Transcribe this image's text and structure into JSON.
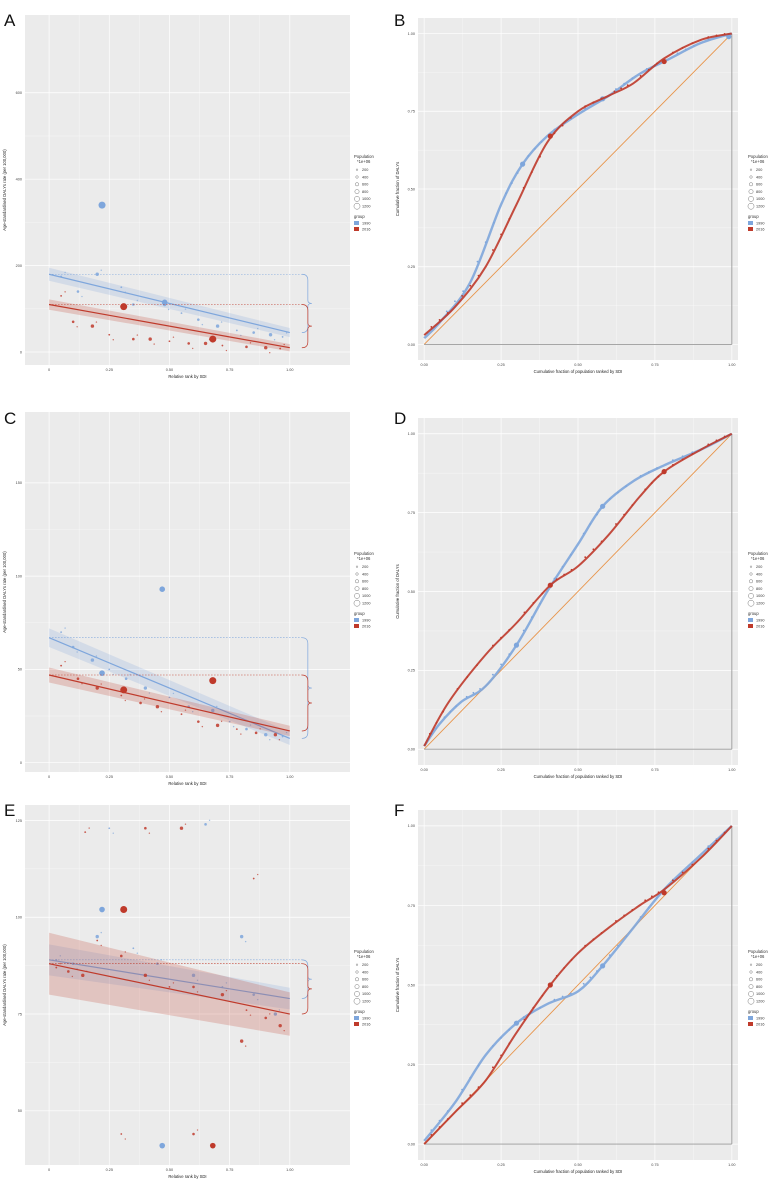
{
  "figure": {
    "legend": {
      "population_title": "Population",
      "population_subtitle": "*1e+06",
      "sizes": [
        "200",
        "400",
        "600",
        "800",
        "1000",
        "1200"
      ],
      "group_title": "group",
      "group_1990": "1990",
      "group_2016": "2016"
    },
    "colors": {
      "c1990": "#7ea6dc",
      "c2016": "#bf3a2b",
      "diag": "#e8944a",
      "panel_bg": "#ebebeb"
    }
  },
  "chart_data": [
    {
      "panel_label": "A",
      "type": "scatter",
      "title": "",
      "xlabel": "Relative rank by SDI",
      "ylabel": "Age-standardised DALYs rate (per 100,000)",
      "xticks": [
        "0",
        "0.25",
        "0.50",
        "0.75",
        "1.00"
      ],
      "yticks": [
        "0",
        "200",
        "400",
        "600"
      ],
      "ylim": [
        -30,
        780
      ],
      "series": [
        {
          "name": "1990",
          "fit": [
            180,
            45
          ],
          "band": 15,
          "points": [
            [
              0.05,
              175
            ],
            [
              0.12,
              140
            ],
            [
              0.2,
              180
            ],
            [
              0.3,
              150
            ],
            [
              0.35,
              110
            ],
            [
              0.48,
              110
            ],
            [
              0.55,
              90
            ],
            [
              0.62,
              75
            ],
            [
              0.7,
              60
            ],
            [
              0.78,
              50
            ],
            [
              0.85,
              45
            ],
            [
              0.92,
              40
            ],
            [
              0.97,
              35
            ]
          ],
          "big": [
            [
              0.22,
              340,
              5
            ],
            [
              0.48,
              115,
              4
            ]
          ]
        },
        {
          "name": "2016",
          "fit": [
            110,
            10
          ],
          "band": 12,
          "points": [
            [
              0.05,
              130
            ],
            [
              0.1,
              70
            ],
            [
              0.18,
              60
            ],
            [
              0.25,
              40
            ],
            [
              0.35,
              30
            ],
            [
              0.42,
              30
            ],
            [
              0.5,
              25
            ],
            [
              0.58,
              20
            ],
            [
              0.65,
              20
            ],
            [
              0.72,
              15
            ],
            [
              0.82,
              12
            ],
            [
              0.9,
              10
            ],
            [
              0.96,
              8
            ]
          ],
          "big": [
            [
              0.31,
              105,
              5
            ],
            [
              0.68,
              30,
              5
            ]
          ]
        }
      ]
    },
    {
      "panel_label": "B",
      "type": "line",
      "title": "",
      "xlabel": "Cumulative fraction of population ranked by SDI",
      "ylabel": "Cumulative fraction of DALYs",
      "xticks": [
        "0.00",
        "0.25",
        "0.50",
        "0.75",
        "1.00"
      ],
      "yticks": [
        "0.00",
        "0.25",
        "0.50",
        "0.75",
        "1.00"
      ],
      "ylim": [
        -0.05,
        1.05
      ],
      "series": [
        {
          "name": "1990",
          "curve": [
            [
              0,
              0.02
            ],
            [
              0.05,
              0.07
            ],
            [
              0.15,
              0.2
            ],
            [
              0.25,
              0.45
            ],
            [
              0.32,
              0.58
            ],
            [
              0.4,
              0.67
            ],
            [
              0.5,
              0.74
            ],
            [
              0.6,
              0.8
            ],
            [
              0.7,
              0.87
            ],
            [
              0.8,
              0.92
            ],
            [
              0.9,
              0.97
            ],
            [
              1,
              1
            ]
          ],
          "big": [
            [
              0.32,
              0.58
            ],
            [
              0.58,
              0.79
            ],
            [
              0.99,
              0.99
            ]
          ]
        },
        {
          "name": "2016",
          "curve": [
            [
              0,
              0.03
            ],
            [
              0.1,
              0.12
            ],
            [
              0.2,
              0.25
            ],
            [
              0.3,
              0.45
            ],
            [
              0.4,
              0.65
            ],
            [
              0.5,
              0.75
            ],
            [
              0.6,
              0.8
            ],
            [
              0.68,
              0.84
            ],
            [
              0.78,
              0.92
            ],
            [
              0.9,
              0.98
            ],
            [
              1,
              1
            ]
          ],
          "big": [
            [
              0.41,
              0.67
            ],
            [
              0.78,
              0.91
            ]
          ]
        }
      ]
    },
    {
      "panel_label": "C",
      "type": "scatter",
      "title": "",
      "xlabel": "Relative rank by SDI",
      "ylabel": "Age-standardised DALYs rate (per 100,000)",
      "xticks": [
        "0",
        "0.25",
        "0.50",
        "0.75",
        "1.00"
      ],
      "yticks": [
        "0",
        "50",
        "100",
        "150"
      ],
      "ylim": [
        -5,
        188
      ],
      "series": [
        {
          "name": "1990",
          "fit": [
            67,
            13
          ],
          "band": 5,
          "points": [
            [
              0.05,
              70
            ],
            [
              0.1,
              62
            ],
            [
              0.18,
              55
            ],
            [
              0.25,
              50
            ],
            [
              0.32,
              45
            ],
            [
              0.4,
              40
            ],
            [
              0.5,
              35
            ],
            [
              0.58,
              30
            ],
            [
              0.68,
              28
            ],
            [
              0.75,
              22
            ],
            [
              0.82,
              18
            ],
            [
              0.9,
              15
            ],
            [
              0.97,
              14
            ]
          ],
          "big": [
            [
              0.22,
              48,
              4
            ],
            [
              0.47,
              93,
              4
            ]
          ]
        },
        {
          "name": "2016",
          "fit": [
            47,
            17
          ],
          "band": 4,
          "points": [
            [
              0.05,
              52
            ],
            [
              0.12,
              45
            ],
            [
              0.2,
              40
            ],
            [
              0.3,
              36
            ],
            [
              0.38,
              32
            ],
            [
              0.45,
              30
            ],
            [
              0.55,
              26
            ],
            [
              0.62,
              22
            ],
            [
              0.7,
              20
            ],
            [
              0.78,
              18
            ],
            [
              0.86,
              16
            ],
            [
              0.94,
              15
            ]
          ],
          "big": [
            [
              0.31,
              39,
              5
            ],
            [
              0.68,
              44,
              5
            ]
          ]
        }
      ]
    },
    {
      "panel_label": "D",
      "type": "line",
      "title": "",
      "xlabel": "Cumulative fraction of population ranked by SDI",
      "ylabel": "Cumulative fraction of DALYs",
      "xticks": [
        "0.00",
        "0.25",
        "0.50",
        "0.75",
        "1.00"
      ],
      "yticks": [
        "0.00",
        "0.25",
        "0.50",
        "0.75",
        "1.00"
      ],
      "ylim": [
        -0.05,
        1.05
      ],
      "series": [
        {
          "name": "1990",
          "curve": [
            [
              0,
              0.01
            ],
            [
              0.05,
              0.08
            ],
            [
              0.12,
              0.15
            ],
            [
              0.2,
              0.2
            ],
            [
              0.3,
              0.33
            ],
            [
              0.4,
              0.5
            ],
            [
              0.5,
              0.65
            ],
            [
              0.58,
              0.77
            ],
            [
              0.68,
              0.85
            ],
            [
              0.78,
              0.9
            ],
            [
              0.9,
              0.95
            ],
            [
              1,
              1
            ]
          ],
          "big": [
            [
              0.3,
              0.33
            ],
            [
              0.58,
              0.77
            ]
          ]
        },
        {
          "name": "2016",
          "curve": [
            [
              0,
              0.01
            ],
            [
              0.08,
              0.15
            ],
            [
              0.2,
              0.3
            ],
            [
              0.3,
              0.4
            ],
            [
              0.41,
              0.52
            ],
            [
              0.5,
              0.58
            ],
            [
              0.6,
              0.68
            ],
            [
              0.7,
              0.8
            ],
            [
              0.78,
              0.88
            ],
            [
              0.9,
              0.95
            ],
            [
              1,
              1
            ]
          ],
          "big": [
            [
              0.41,
              0.52
            ],
            [
              0.78,
              0.88
            ]
          ]
        }
      ]
    },
    {
      "panel_label": "E",
      "type": "scatter",
      "title": "",
      "xlabel": "Relative rank by SDI",
      "ylabel": "Age-standardised DALYs rate (per 100,000)",
      "xticks": [
        "0",
        "0.25",
        "0.50",
        "0.75",
        "1.00"
      ],
      "yticks": [
        "50",
        "75",
        "100",
        "125"
      ],
      "ylim": [
        36,
        129
      ],
      "series": [
        {
          "name": "1990",
          "fit": [
            89,
            79
          ],
          "band": 4,
          "points": [
            [
              0.03,
              89
            ],
            [
              0.1,
              88
            ],
            [
              0.2,
              95
            ],
            [
              0.35,
              92
            ],
            [
              0.45,
              88
            ],
            [
              0.6,
              85
            ],
            [
              0.72,
              82
            ],
            [
              0.85,
              80
            ],
            [
              0.94,
              75
            ],
            [
              0.25,
              123
            ],
            [
              0.65,
              124
            ],
            [
              0.8,
              95
            ]
          ],
          "big": [
            [
              0.22,
              102,
              4
            ],
            [
              0.47,
              41,
              4
            ]
          ]
        },
        {
          "name": "2016",
          "fit": [
            88,
            75
          ],
          "band": 8,
          "points": [
            [
              0.03,
              87
            ],
            [
              0.08,
              86
            ],
            [
              0.14,
              85
            ],
            [
              0.2,
              94
            ],
            [
              0.3,
              90
            ],
            [
              0.4,
              85
            ],
            [
              0.5,
              82
            ],
            [
              0.6,
              82
            ],
            [
              0.72,
              80
            ],
            [
              0.82,
              76
            ],
            [
              0.9,
              74
            ],
            [
              0.96,
              72
            ],
            [
              0.15,
              122
            ],
            [
              0.4,
              123
            ],
            [
              0.55,
              123
            ],
            [
              0.3,
              44
            ],
            [
              0.6,
              44
            ],
            [
              0.8,
              68
            ],
            [
              0.85,
              110
            ]
          ],
          "big": [
            [
              0.31,
              102,
              5
            ],
            [
              0.68,
              41,
              4
            ]
          ]
        }
      ]
    },
    {
      "panel_label": "F",
      "type": "line",
      "title": "",
      "xlabel": "Cumulative fraction of population ranked by SDI",
      "ylabel": "Cumulative fraction of DALYs",
      "xticks": [
        "0.00",
        "0.25",
        "0.50",
        "0.75",
        "1.00"
      ],
      "yticks": [
        "0.00",
        "0.25",
        "0.50",
        "0.75",
        "1.00"
      ],
      "ylim": [
        -0.05,
        1.05
      ],
      "series": [
        {
          "name": "1990",
          "curve": [
            [
              0,
              0.01
            ],
            [
              0.1,
              0.13
            ],
            [
              0.2,
              0.28
            ],
            [
              0.3,
              0.38
            ],
            [
              0.4,
              0.44
            ],
            [
              0.5,
              0.48
            ],
            [
              0.58,
              0.56
            ],
            [
              0.68,
              0.68
            ],
            [
              0.78,
              0.8
            ],
            [
              0.9,
              0.91
            ],
            [
              1,
              1
            ]
          ],
          "big": [
            [
              0.3,
              0.38
            ],
            [
              0.58,
              0.56
            ]
          ]
        },
        {
          "name": "2016",
          "curve": [
            [
              0,
              0.0
            ],
            [
              0.1,
              0.1
            ],
            [
              0.2,
              0.2
            ],
            [
              0.3,
              0.35
            ],
            [
              0.41,
              0.5
            ],
            [
              0.5,
              0.6
            ],
            [
              0.6,
              0.68
            ],
            [
              0.7,
              0.75
            ],
            [
              0.78,
              0.8
            ],
            [
              0.9,
              0.9
            ],
            [
              1,
              1
            ]
          ],
          "big": [
            [
              0.41,
              0.5
            ],
            [
              0.78,
              0.79
            ]
          ]
        }
      ]
    }
  ]
}
